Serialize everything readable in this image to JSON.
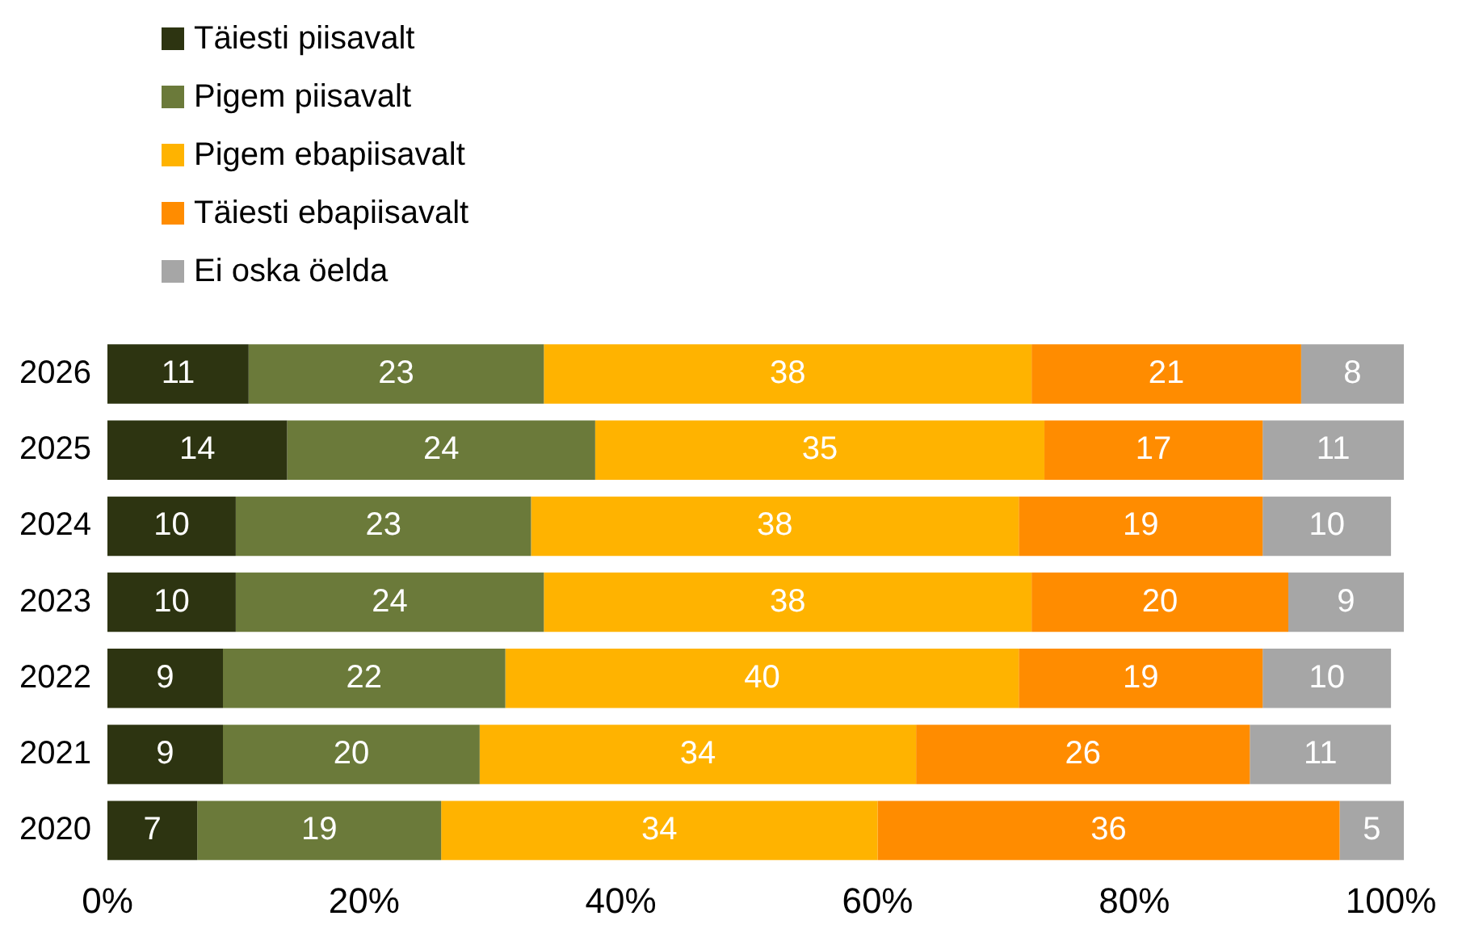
{
  "chart_data": {
    "type": "bar",
    "orientation": "horizontal",
    "stacked": true,
    "categories": [
      "2026",
      "2025",
      "2024",
      "2023",
      "2022",
      "2021",
      "2020"
    ],
    "series": [
      {
        "name": "Täiesti piisavalt",
        "color": "#2d3411",
        "values": [
          11,
          14,
          10,
          10,
          9,
          9,
          7
        ]
      },
      {
        "name": "Pigem piisavalt",
        "color": "#6b7a3a",
        "values": [
          23,
          24,
          23,
          24,
          22,
          20,
          19
        ]
      },
      {
        "name": "Pigem ebapiisavalt",
        "color": "#ffb300",
        "values": [
          38,
          35,
          38,
          38,
          40,
          34,
          34
        ]
      },
      {
        "name": "Täiesti ebapiisavalt",
        "color": "#ff8c00",
        "values": [
          21,
          17,
          19,
          20,
          19,
          26,
          36
        ]
      },
      {
        "name": "Ei oska öelda",
        "color": "#a6a6a6",
        "values": [
          8,
          11,
          10,
          9,
          10,
          11,
          5
        ]
      }
    ],
    "xlim": [
      0,
      101
    ],
    "xticks": [
      {
        "value": 0,
        "label": "0%"
      },
      {
        "value": 20,
        "label": "20%"
      },
      {
        "value": 40,
        "label": "40%"
      },
      {
        "value": 60,
        "label": "60%"
      },
      {
        "value": 80,
        "label": "80%"
      },
      {
        "value": 100,
        "label": "100%"
      }
    ],
    "data_labels": true,
    "grid": false,
    "legend": "top left"
  }
}
